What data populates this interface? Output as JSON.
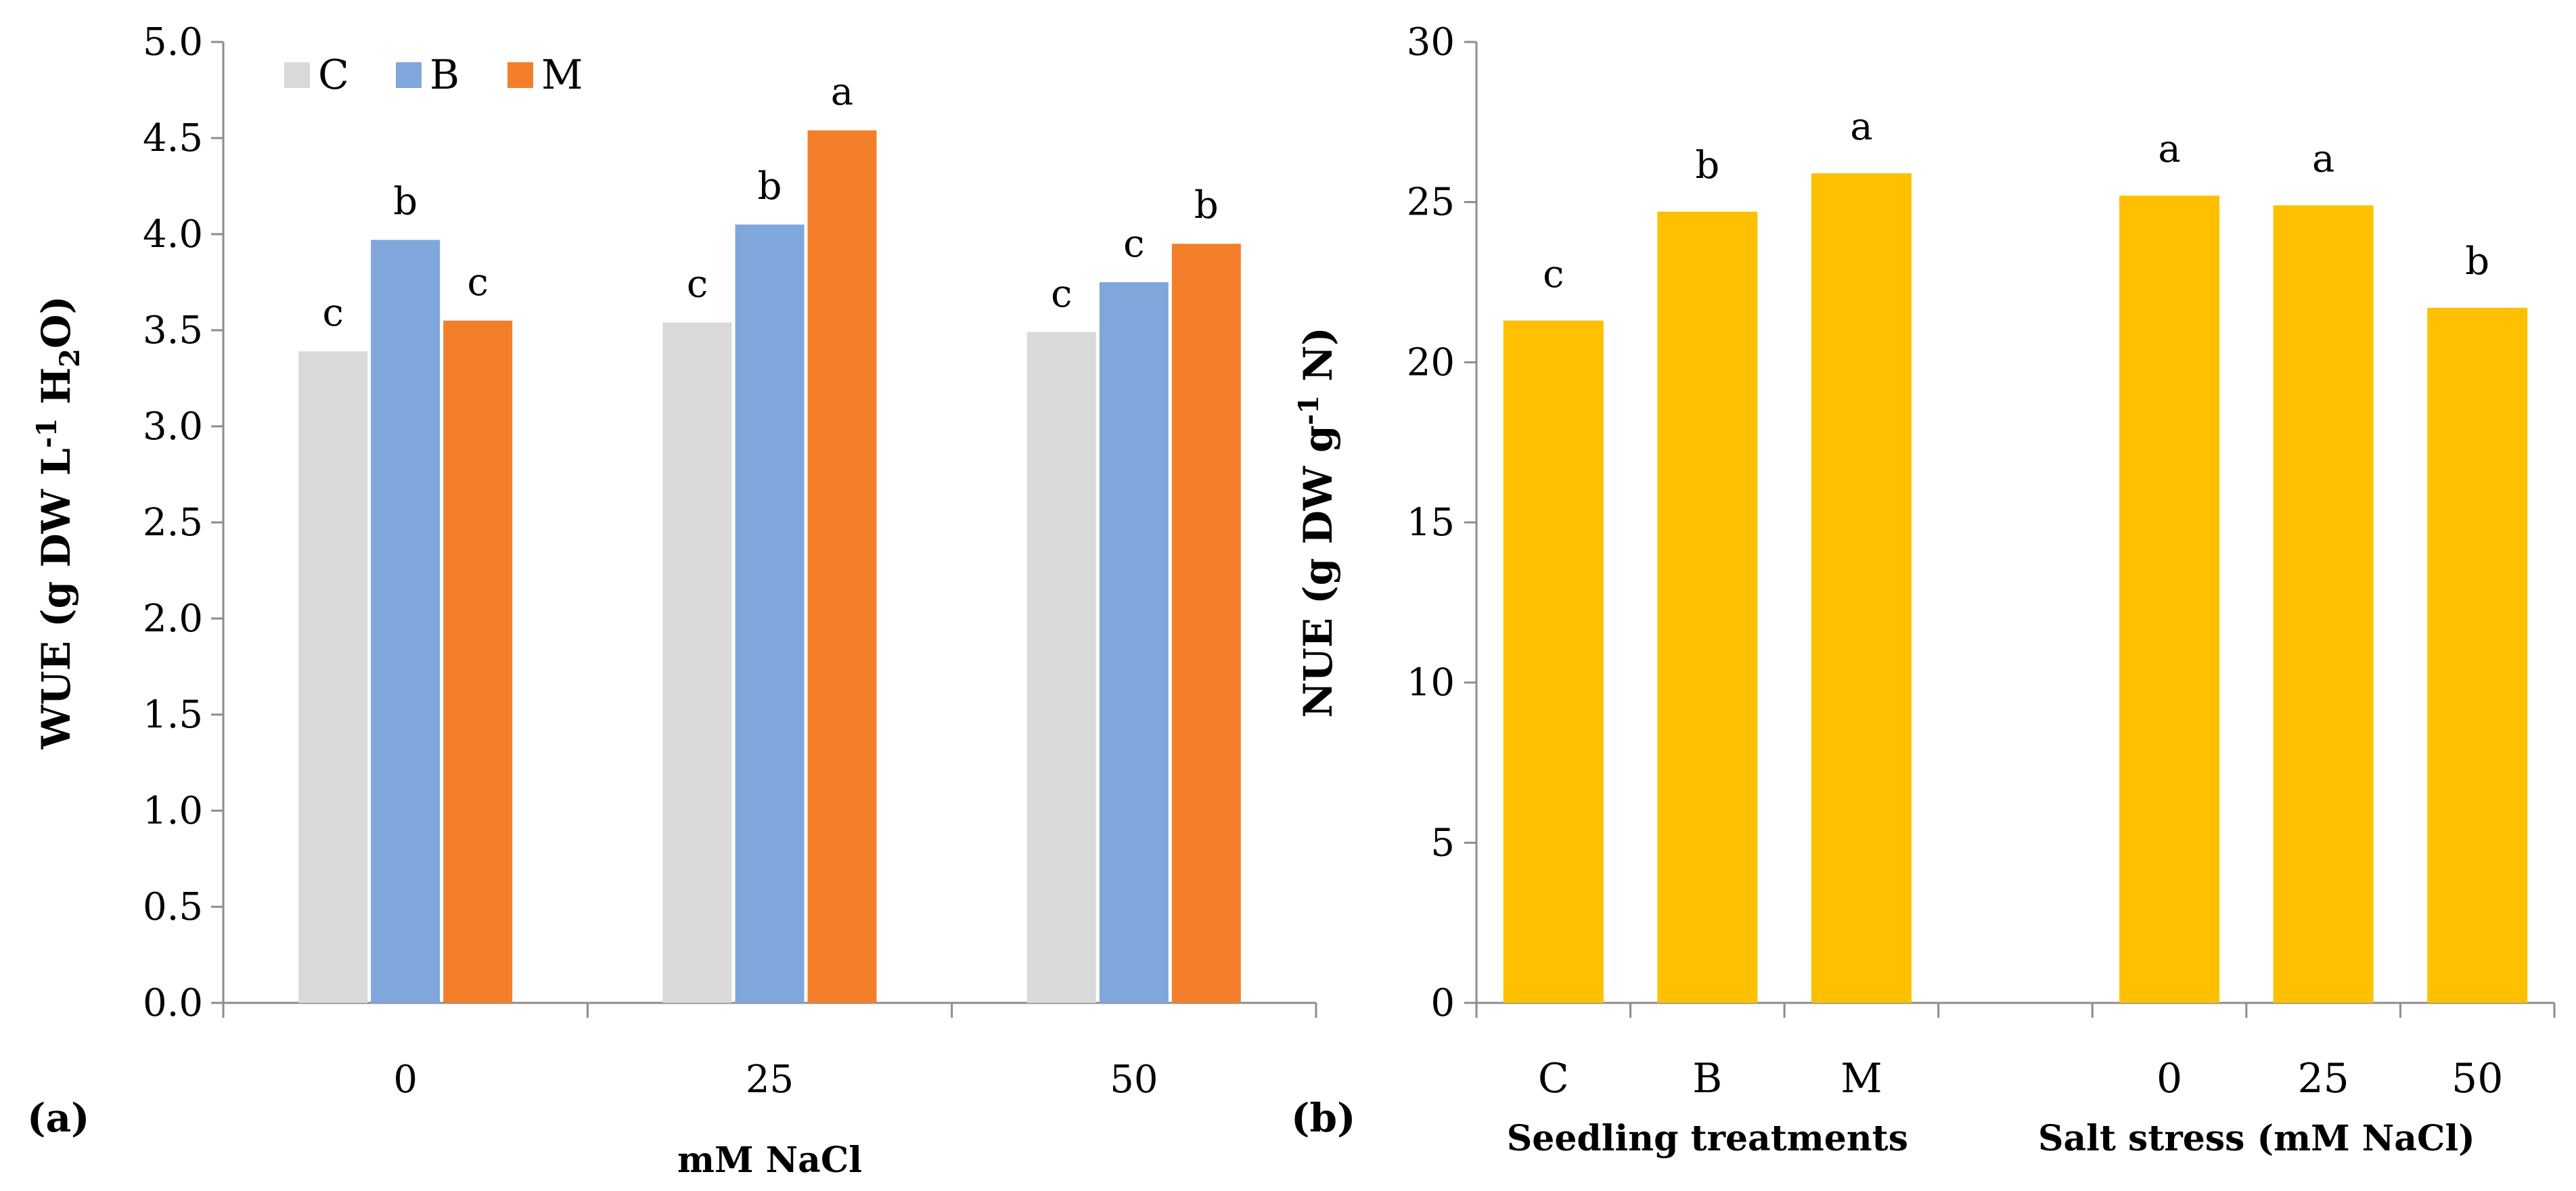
{
  "chart_data": [
    {
      "type": "bar",
      "panel_label": "(a)",
      "xlabel": "mM NaCl",
      "ylabel": "WUE (g DW L-1 H2O)",
      "ylabel_parts": {
        "pre": "WUE (g DW L",
        "sup": "-1",
        "mid": " H",
        "sub": "2",
        "post": "O)"
      },
      "ylim": [
        0,
        5
      ],
      "yticks": [
        "0.0",
        "0.5",
        "1.0",
        "1.5",
        "2.0",
        "2.5",
        "3.0",
        "3.5",
        "4.0",
        "4.5",
        "5.0"
      ],
      "grid": false,
      "legend_position": "top-left",
      "categories": [
        "0",
        "25",
        "50"
      ],
      "series": [
        {
          "name": "C",
          "color": "#D9D9D9",
          "values": [
            3.39,
            3.54,
            3.49
          ],
          "letters": [
            "c",
            "c",
            "c"
          ]
        },
        {
          "name": "B",
          "color": "#7FA7DC",
          "values": [
            3.97,
            4.05,
            3.75
          ],
          "letters": [
            "b",
            "b",
            "c"
          ]
        },
        {
          "name": "M",
          "color": "#F47F2A",
          "values": [
            3.55,
            4.54,
            3.95
          ],
          "letters": [
            "c",
            "a",
            "b"
          ]
        }
      ]
    },
    {
      "type": "bar",
      "panel_label": "(b)",
      "ylabel": "NUE (g DW g-1 N)",
      "ylabel_parts": {
        "pre": "NUE (g DW g",
        "sup": "-1",
        "post": " N)"
      },
      "ylim": [
        0,
        30
      ],
      "yticks": [
        "0",
        "5",
        "10",
        "15",
        "20",
        "25",
        "30"
      ],
      "grid": false,
      "color": "#FFC000",
      "categories": [
        "C",
        "B",
        "M",
        "",
        "0",
        "25",
        "50"
      ],
      "values": [
        21.3,
        24.7,
        25.9,
        null,
        25.2,
        24.9,
        21.7
      ],
      "letters": [
        "c",
        "b",
        "a",
        "",
        "a",
        "a",
        "b"
      ],
      "group_labels": [
        "Seedling treatments",
        "Salt stress (mM NaCl)"
      ]
    }
  ]
}
